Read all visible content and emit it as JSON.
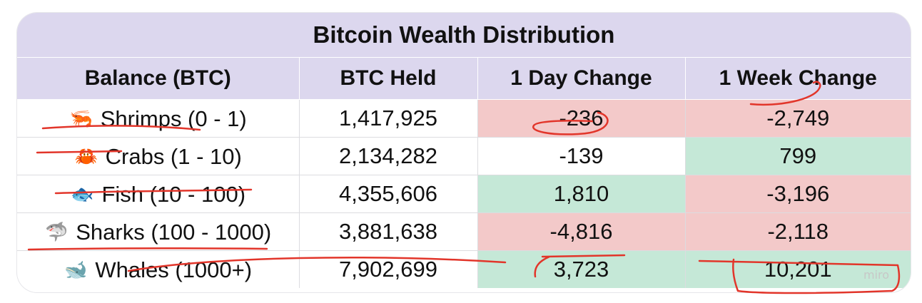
{
  "table": {
    "title": "Bitcoin Wealth Distribution",
    "headers": [
      "Balance (BTC)",
      "BTC Held",
      "1 Day Change",
      "1 Week Change"
    ],
    "rows": [
      {
        "icon": "shrimp-icon",
        "glyph": "🦐",
        "label": "Shrimps (0 - 1)",
        "held": "1,417,925",
        "day": "-236",
        "week": "-2,749",
        "day_status": "negative",
        "week_status": "negative"
      },
      {
        "icon": "crab-icon",
        "glyph": "🦀",
        "label": "Crabs (1 - 10)",
        "held": "2,134,282",
        "day": "-139",
        "week": "799",
        "day_status": "none",
        "week_status": "positive"
      },
      {
        "icon": "fish-icon",
        "glyph": "🐟",
        "label": "Fish (10 - 100)",
        "held": "4,355,606",
        "day": "1,810",
        "week": "-3,196",
        "day_status": "positive",
        "week_status": "negative"
      },
      {
        "icon": "shark-icon",
        "glyph": "🦈",
        "label": "Sharks (100 - 1000)",
        "held": "3,881,638",
        "day": "-4,816",
        "week": "-2,118",
        "day_status": "negative",
        "week_status": "negative"
      },
      {
        "icon": "whale-icon",
        "glyph": "🐋",
        "label": "Whales (1000+)",
        "held": "7,902,699",
        "day": "3,723",
        "week": "10,201",
        "day_status": "positive",
        "week_status": "positive"
      }
    ]
  },
  "watermark": "miro",
  "colors": {
    "header_bg": "#dcd7ee",
    "negative_bg": "#f3c9c9",
    "positive_bg": "#c5e8d7",
    "annotation_red": "#e2352a"
  }
}
